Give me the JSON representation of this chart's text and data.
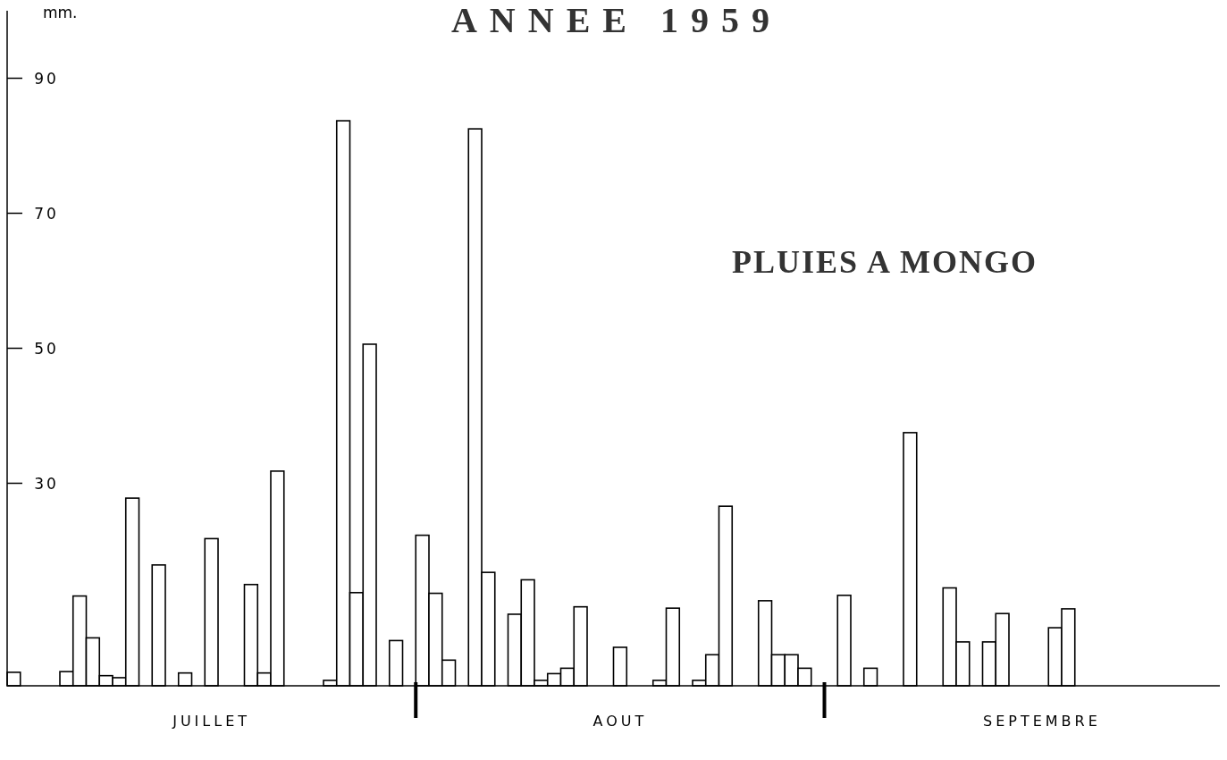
{
  "chart_data": {
    "type": "bar",
    "title": "ANNEE 1959",
    "ylabel": "mm.",
    "annotations": [
      "PLUIES A MONGO"
    ],
    "categories": [
      null,
      null,
      null,
      null,
      null,
      null,
      null,
      null,
      null,
      null,
      null,
      null,
      null,
      null,
      null,
      "JUILLET",
      null,
      null,
      null,
      null,
      null,
      null,
      null,
      null,
      null,
      null,
      null,
      null,
      null,
      null,
      null,
      null,
      null,
      null,
      null,
      null,
      null,
      null,
      null,
      null,
      null,
      null,
      null,
      null,
      null,
      null,
      "AOUT",
      null,
      null,
      null,
      null,
      null,
      null,
      null,
      null,
      null,
      null,
      null,
      null,
      null,
      null,
      null,
      null,
      null,
      null,
      null,
      null,
      null,
      null,
      null,
      null,
      null,
      null,
      null,
      null,
      null,
      null,
      null,
      "SEPTEMBRE",
      null,
      null,
      null,
      null,
      null,
      null,
      null,
      null,
      null,
      null,
      null,
      null,
      null
    ],
    "values": [
      2.0,
      null,
      null,
      null,
      2.1,
      13.3,
      7.1,
      1.5,
      1.2,
      27.8,
      null,
      17.9,
      null,
      1.9,
      null,
      21.8,
      null,
      null,
      15.0,
      1.9,
      31.8,
      null,
      null,
      null,
      0.8,
      83.7,
      13.8,
      50.6,
      null,
      6.7,
      null,
      22.3,
      13.7,
      3.8,
      null,
      82.5,
      16.8,
      null,
      10.6,
      15.7,
      0.8,
      1.8,
      2.6,
      11.7,
      null,
      null,
      5.7,
      null,
      null,
      0.8,
      11.5,
      null,
      0.8,
      4.6,
      26.6,
      null,
      null,
      12.6,
      4.6,
      4.6,
      2.6,
      null,
      null,
      13.4,
      null,
      2.6,
      null,
      null,
      37.5,
      null,
      null,
      14.5,
      6.5,
      null,
      6.5,
      10.7,
      null,
      null,
      null,
      8.6,
      11.4,
      null,
      null,
      null,
      null,
      null,
      null,
      null,
      null,
      null,
      null,
      null
    ],
    "color": "#ffffff",
    "ylim": [
      0,
      100
    ],
    "yticks": [
      30,
      50,
      70,
      90
    ],
    "grid": false
  }
}
